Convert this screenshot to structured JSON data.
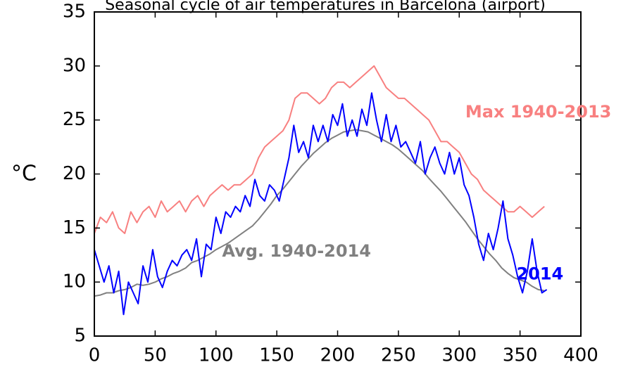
{
  "chart_data": {
    "type": "line",
    "title": "Seasonal cycle of air temperatures in Barcelona (airport)",
    "ylabel": "°C",
    "xlabel": "",
    "xlim": [
      0,
      400
    ],
    "ylim": [
      5,
      35
    ],
    "x_ticks": [
      "0",
      "50",
      "100",
      "150",
      "200",
      "250",
      "300",
      "350",
      "400"
    ],
    "y_ticks": [
      "5",
      "10",
      "15",
      "20",
      "25",
      "30",
      "35"
    ],
    "grid": false,
    "series": [
      {
        "name": "Max 1940-2013",
        "color": "#f88080",
        "points": [
          [
            0,
            14.5
          ],
          [
            5,
            16.0
          ],
          [
            10,
            15.5
          ],
          [
            15,
            16.5
          ],
          [
            20,
            15.0
          ],
          [
            25,
            14.5
          ],
          [
            30,
            16.5
          ],
          [
            35,
            15.5
          ],
          [
            40,
            16.5
          ],
          [
            45,
            17.0
          ],
          [
            50,
            16.0
          ],
          [
            55,
            17.5
          ],
          [
            60,
            16.5
          ],
          [
            65,
            17.0
          ],
          [
            70,
            17.5
          ],
          [
            75,
            16.5
          ],
          [
            80,
            17.5
          ],
          [
            85,
            18.0
          ],
          [
            90,
            17.0
          ],
          [
            95,
            18.0
          ],
          [
            100,
            18.5
          ],
          [
            105,
            19.0
          ],
          [
            110,
            18.5
          ],
          [
            115,
            19.0
          ],
          [
            120,
            19.0
          ],
          [
            125,
            19.5
          ],
          [
            130,
            20.0
          ],
          [
            135,
            21.5
          ],
          [
            140,
            22.5
          ],
          [
            145,
            23.0
          ],
          [
            150,
            23.5
          ],
          [
            155,
            24.0
          ],
          [
            160,
            25.0
          ],
          [
            165,
            27.0
          ],
          [
            170,
            27.5
          ],
          [
            175,
            27.5
          ],
          [
            180,
            27.0
          ],
          [
            185,
            26.5
          ],
          [
            190,
            27.0
          ],
          [
            195,
            28.0
          ],
          [
            200,
            28.5
          ],
          [
            205,
            28.5
          ],
          [
            210,
            28.0
          ],
          [
            215,
            28.5
          ],
          [
            220,
            29.0
          ],
          [
            225,
            29.5
          ],
          [
            230,
            30.0
          ],
          [
            235,
            29.0
          ],
          [
            240,
            28.0
          ],
          [
            245,
            27.5
          ],
          [
            250,
            27.0
          ],
          [
            255,
            27.0
          ],
          [
            260,
            26.5
          ],
          [
            265,
            26.0
          ],
          [
            270,
            25.5
          ],
          [
            275,
            25.0
          ],
          [
            280,
            24.0
          ],
          [
            285,
            23.0
          ],
          [
            290,
            23.0
          ],
          [
            295,
            22.5
          ],
          [
            300,
            22.0
          ],
          [
            305,
            21.0
          ],
          [
            310,
            20.0
          ],
          [
            315,
            19.5
          ],
          [
            320,
            18.5
          ],
          [
            325,
            18.0
          ],
          [
            330,
            17.5
          ],
          [
            335,
            17.0
          ],
          [
            340,
            16.5
          ],
          [
            345,
            16.5
          ],
          [
            350,
            17.0
          ],
          [
            355,
            16.5
          ],
          [
            360,
            16.0
          ],
          [
            365,
            16.5
          ],
          [
            370,
            17.0
          ]
        ]
      },
      {
        "name": "Avg. 1940-2014",
        "color": "#808080",
        "points": [
          [
            0,
            8.7
          ],
          [
            5,
            8.8
          ],
          [
            10,
            9.0
          ],
          [
            15,
            9.0
          ],
          [
            20,
            9.2
          ],
          [
            25,
            9.3
          ],
          [
            30,
            9.5
          ],
          [
            35,
            9.8
          ],
          [
            40,
            9.7
          ],
          [
            45,
            9.8
          ],
          [
            50,
            10.0
          ],
          [
            55,
            10.3
          ],
          [
            60,
            10.5
          ],
          [
            65,
            10.8
          ],
          [
            70,
            11.0
          ],
          [
            75,
            11.3
          ],
          [
            80,
            11.8
          ],
          [
            85,
            12.0
          ],
          [
            90,
            12.3
          ],
          [
            95,
            12.6
          ],
          [
            100,
            13.0
          ],
          [
            105,
            13.3
          ],
          [
            110,
            13.6
          ],
          [
            115,
            14.0
          ],
          [
            120,
            14.4
          ],
          [
            125,
            14.8
          ],
          [
            130,
            15.2
          ],
          [
            135,
            15.8
          ],
          [
            140,
            16.5
          ],
          [
            145,
            17.2
          ],
          [
            150,
            18.0
          ],
          [
            155,
            18.6
          ],
          [
            160,
            19.3
          ],
          [
            165,
            20.0
          ],
          [
            170,
            20.7
          ],
          [
            175,
            21.3
          ],
          [
            180,
            21.9
          ],
          [
            185,
            22.4
          ],
          [
            190,
            22.9
          ],
          [
            195,
            23.3
          ],
          [
            200,
            23.6
          ],
          [
            205,
            23.9
          ],
          [
            210,
            24.0
          ],
          [
            215,
            24.1
          ],
          [
            220,
            24.0
          ],
          [
            225,
            23.9
          ],
          [
            230,
            23.6
          ],
          [
            235,
            23.3
          ],
          [
            240,
            23.0
          ],
          [
            245,
            22.7
          ],
          [
            250,
            22.3
          ],
          [
            255,
            21.8
          ],
          [
            260,
            21.3
          ],
          [
            265,
            20.8
          ],
          [
            270,
            20.3
          ],
          [
            275,
            19.6
          ],
          [
            280,
            19.0
          ],
          [
            285,
            18.4
          ],
          [
            290,
            17.7
          ],
          [
            295,
            17.0
          ],
          [
            300,
            16.3
          ],
          [
            305,
            15.6
          ],
          [
            310,
            14.8
          ],
          [
            315,
            14.0
          ],
          [
            320,
            13.3
          ],
          [
            325,
            12.6
          ],
          [
            330,
            12.0
          ],
          [
            335,
            11.3
          ],
          [
            340,
            10.8
          ],
          [
            345,
            10.4
          ],
          [
            350,
            10.2
          ],
          [
            355,
            10.0
          ],
          [
            360,
            9.6
          ],
          [
            365,
            9.3
          ],
          [
            370,
            9.2
          ]
        ]
      },
      {
        "name": "2014",
        "color": "#0000ff",
        "points": [
          [
            0,
            13.0
          ],
          [
            4,
            11.5
          ],
          [
            8,
            10.0
          ],
          [
            12,
            11.5
          ],
          [
            16,
            9.0
          ],
          [
            20,
            11.0
          ],
          [
            24,
            7.0
          ],
          [
            28,
            10.0
          ],
          [
            32,
            9.0
          ],
          [
            36,
            8.0
          ],
          [
            40,
            11.5
          ],
          [
            44,
            10.0
          ],
          [
            48,
            13.0
          ],
          [
            52,
            10.5
          ],
          [
            56,
            9.5
          ],
          [
            60,
            11.0
          ],
          [
            64,
            12.0
          ],
          [
            68,
            11.5
          ],
          [
            72,
            12.5
          ],
          [
            76,
            13.0
          ],
          [
            80,
            12.0
          ],
          [
            84,
            14.0
          ],
          [
            88,
            10.5
          ],
          [
            92,
            13.5
          ],
          [
            96,
            13.0
          ],
          [
            100,
            16.0
          ],
          [
            104,
            14.5
          ],
          [
            108,
            16.5
          ],
          [
            112,
            16.0
          ],
          [
            116,
            17.0
          ],
          [
            120,
            16.5
          ],
          [
            124,
            18.0
          ],
          [
            128,
            17.0
          ],
          [
            132,
            19.5
          ],
          [
            136,
            18.0
          ],
          [
            140,
            17.5
          ],
          [
            144,
            19.0
          ],
          [
            148,
            18.5
          ],
          [
            152,
            17.5
          ],
          [
            156,
            19.5
          ],
          [
            160,
            21.5
          ],
          [
            164,
            24.5
          ],
          [
            168,
            22.0
          ],
          [
            172,
            23.0
          ],
          [
            176,
            21.5
          ],
          [
            180,
            24.5
          ],
          [
            184,
            23.0
          ],
          [
            188,
            24.5
          ],
          [
            192,
            23.0
          ],
          [
            196,
            25.5
          ],
          [
            200,
            24.5
          ],
          [
            204,
            26.5
          ],
          [
            208,
            23.5
          ],
          [
            212,
            25.0
          ],
          [
            216,
            23.5
          ],
          [
            220,
            26.0
          ],
          [
            224,
            24.5
          ],
          [
            228,
            27.5
          ],
          [
            232,
            25.0
          ],
          [
            236,
            23.0
          ],
          [
            240,
            25.5
          ],
          [
            244,
            23.0
          ],
          [
            248,
            24.5
          ],
          [
            252,
            22.5
          ],
          [
            256,
            23.0
          ],
          [
            260,
            22.0
          ],
          [
            264,
            21.0
          ],
          [
            268,
            23.0
          ],
          [
            272,
            20.0
          ],
          [
            276,
            21.5
          ],
          [
            280,
            22.5
          ],
          [
            284,
            21.0
          ],
          [
            288,
            20.0
          ],
          [
            292,
            22.0
          ],
          [
            296,
            20.0
          ],
          [
            300,
            21.5
          ],
          [
            304,
            19.0
          ],
          [
            308,
            18.0
          ],
          [
            312,
            16.0
          ],
          [
            316,
            13.5
          ],
          [
            320,
            12.0
          ],
          [
            324,
            14.5
          ],
          [
            328,
            13.0
          ],
          [
            332,
            15.0
          ],
          [
            336,
            17.5
          ],
          [
            340,
            14.0
          ],
          [
            344,
            12.5
          ],
          [
            348,
            10.5
          ],
          [
            352,
            9.0
          ],
          [
            356,
            11.0
          ],
          [
            360,
            14.0
          ],
          [
            364,
            11.0
          ],
          [
            368,
            9.0
          ],
          [
            372,
            9.3
          ]
        ]
      }
    ],
    "annotations": [
      {
        "text": "Max 1940-2013",
        "x": 305,
        "y": 25.7,
        "color": "#f88080"
      },
      {
        "text": "Avg. 1940-2014",
        "x": 105,
        "y": 12.8,
        "color": "#808080"
      },
      {
        "text": "2014",
        "x": 347,
        "y": 10.7,
        "color": "#0000ff"
      }
    ]
  }
}
